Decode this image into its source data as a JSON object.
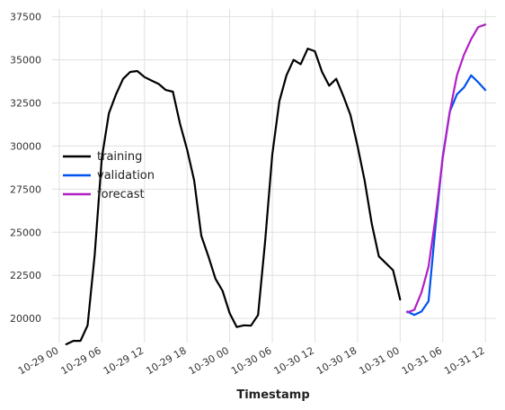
{
  "chart_data": {
    "type": "line",
    "title": "",
    "xlabel": "Timestamp",
    "ylabel": "",
    "x_ticks": [
      "10-29 00",
      "10-29 06",
      "10-29 12",
      "10-29 18",
      "10-30 00",
      "10-30 06",
      "10-30 12",
      "10-30 18",
      "10-31 00",
      "10-31 06",
      "10-31 12"
    ],
    "x_tick_hours": [
      0,
      6,
      12,
      18,
      24,
      30,
      36,
      42,
      48,
      54,
      60
    ],
    "xlim_hours": [
      -1,
      61.5
    ],
    "y_ticks": [
      20000,
      22500,
      25000,
      27500,
      30000,
      32500,
      35000,
      37500
    ],
    "y_tick_labels": [
      "20000",
      "22500",
      "25000",
      "27500",
      "30000",
      "32500",
      "35000",
      "37500"
    ],
    "ylim": [
      18600,
      37950
    ],
    "grid": true,
    "legend_position": "center-left",
    "series": [
      {
        "name": "training",
        "color": "#000000",
        "x_hours": [
          1,
          2,
          3,
          4,
          5,
          6,
          7,
          8,
          9,
          10,
          11,
          12,
          13,
          14,
          15,
          16,
          17,
          18,
          19,
          20,
          21,
          22,
          23,
          24,
          25,
          26,
          27,
          28,
          29,
          30,
          31,
          32,
          33,
          34,
          35,
          36,
          37,
          38,
          39,
          40,
          41,
          42,
          43,
          44,
          45,
          46,
          47,
          48
        ],
        "values": [
          18500,
          18700,
          18700,
          19600,
          23700,
          29300,
          31900,
          33000,
          33900,
          34300,
          34350,
          34000,
          33800,
          33600,
          33250,
          33150,
          31300,
          29800,
          28000,
          24800,
          23600,
          22300,
          21600,
          20300,
          19500,
          19600,
          19580,
          20200,
          24500,
          29500,
          32600,
          34100,
          35000,
          34750,
          35650,
          35500,
          34300,
          33500,
          33900,
          32900,
          31800,
          30000,
          28000,
          25500,
          23600,
          23200,
          22800,
          21100
        ]
      },
      {
        "name": "validation",
        "color": "#0052ef",
        "x_hours": [
          49,
          50,
          51,
          52,
          53,
          54,
          55,
          56,
          57,
          58,
          59,
          60
        ],
        "values": [
          20400,
          20200,
          20400,
          21000,
          25400,
          29400,
          32000,
          33000,
          33400,
          34100,
          33700,
          33250
        ]
      },
      {
        "name": "forecast",
        "color": "#b21fc5",
        "x_hours": [
          49,
          50,
          51,
          52,
          53,
          54,
          55,
          56,
          57,
          58,
          59,
          60
        ],
        "values": [
          20350,
          20500,
          21500,
          23000,
          25900,
          29300,
          32000,
          34100,
          35300,
          36200,
          36900,
          37050
        ]
      }
    ]
  }
}
